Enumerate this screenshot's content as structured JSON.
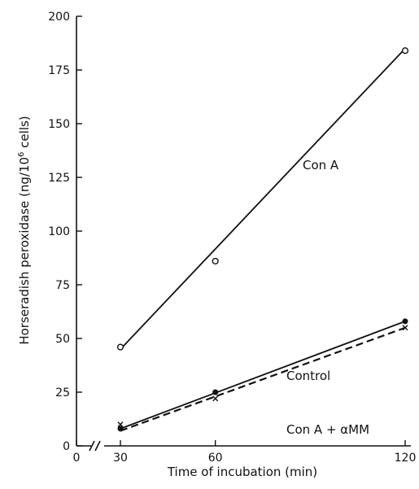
{
  "chart_data": {
    "type": "line",
    "xlabel": "Time of incubation  (min)",
    "ylabel_parts": {
      "main": "Horseradish peroxidase  (ng/10",
      "sup": "6",
      "end": " cells)"
    },
    "x_ticks": [
      0,
      30,
      60,
      120
    ],
    "y_ticks": [
      0,
      25,
      50,
      75,
      100,
      125,
      150,
      175,
      200
    ],
    "ylim": [
      0,
      200
    ],
    "x_axis_break": true,
    "grid": false,
    "series": [
      {
        "name": "Con A",
        "marker": "open-circle",
        "line": "solid",
        "x": [
          30,
          60,
          120
        ],
        "y": [
          46,
          86,
          184
        ],
        "fit": [
          [
            30,
            45
          ],
          [
            120,
            185
          ]
        ]
      },
      {
        "name": "Control",
        "marker": "filled-circle",
        "line": "solid",
        "x": [
          30,
          60,
          120
        ],
        "y": [
          8,
          25,
          58
        ],
        "fit": [
          [
            30,
            8
          ],
          [
            120,
            58
          ]
        ]
      },
      {
        "name": "Con A + αMM",
        "marker": "cross",
        "line": "dashed",
        "x": [
          30,
          60,
          120
        ],
        "y": [
          10,
          22,
          55
        ],
        "fit": [
          [
            30,
            7
          ],
          [
            120,
            55
          ]
        ]
      }
    ]
  }
}
